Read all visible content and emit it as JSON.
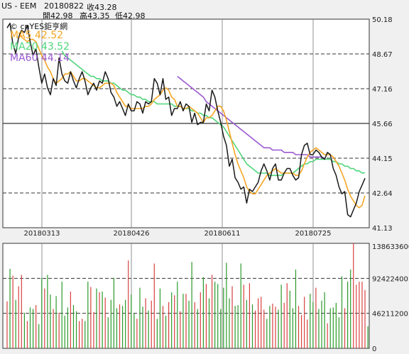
{
  "header": {
    "symbol": "US - EEM",
    "date": "20180822",
    "close_label": "收43.28",
    "open_label": "開42.98",
    "high_label": "高43.35",
    "low_label": "低42.98"
  },
  "watermark": "© cnYES鉅亨網",
  "legend": [
    {
      "text": "MA5 42.52",
      "color": "#f5a623"
    },
    {
      "text": "MA20 43.52",
      "color": "#4fd67a"
    },
    {
      "text": "MA60 44.14",
      "color": "#9b59d0"
    }
  ],
  "chart_data": [
    {
      "type": "line",
      "panel": "price",
      "ylim": [
        41.13,
        50.18
      ],
      "y_ticks": [
        "50.18",
        "48.67",
        "47.16",
        "45.66",
        "44.15",
        "42.64",
        "41.13"
      ],
      "x_tick_labels": [
        "20180313",
        "20180426",
        "20180611",
        "20180725"
      ],
      "grid": "dashed horizontal + vertical",
      "series": [
        {
          "name": "close",
          "color": "#1a1a1a",
          "values": [
            49.8,
            50.0,
            49.1,
            48.7,
            49.4,
            49.7,
            49.6,
            49.9,
            49.2,
            48.6,
            48.9,
            48.1,
            47.4,
            47.8,
            47.2,
            46.9,
            47.6,
            47.3,
            48.5,
            47.8,
            47.5,
            47.4,
            47.9,
            47.5,
            47.2,
            47.6,
            47.9,
            47.5,
            46.9,
            47.2,
            47.4,
            47.1,
            47.5,
            47.4,
            47.9,
            47.6,
            47.0,
            46.8,
            46.4,
            46.6,
            46.3,
            46.0,
            46.5,
            46.2,
            46.2,
            46.6,
            46.5,
            46.1,
            46.6,
            46.5,
            46.6,
            47.6,
            47.4,
            46.9,
            47.6,
            46.7,
            46.8,
            46.0,
            46.3,
            46.3,
            46.6,
            46.2,
            46.5,
            46.4,
            45.7,
            46.1,
            45.6,
            45.7,
            45.7,
            46.5,
            46.2,
            47.1,
            46.8,
            46.2,
            45.7,
            45.1,
            44.7,
            43.8,
            44.1,
            43.3,
            43.1,
            42.8,
            42.9,
            42.2,
            42.8,
            42.7,
            42.9,
            43.1,
            43.6,
            43.9,
            43.6,
            43.2,
            43.7,
            43.9,
            43.2,
            43.2,
            43.5,
            43.7,
            43.7,
            43.4,
            43.2,
            43.3,
            44.3,
            44.7,
            44.8,
            44.3,
            44.3,
            44.5,
            44.4,
            44.2,
            44.1,
            44.4,
            44.3,
            43.7,
            43.4,
            42.9,
            42.6,
            42.7,
            41.7,
            41.6,
            41.9,
            42.2,
            42.7,
            42.98,
            43.28
          ]
        },
        {
          "name": "MA5",
          "color": "#f5a623",
          "values": [
            null,
            null,
            null,
            null,
            49.6,
            49.4,
            49.3,
            49.2,
            49.3,
            49.3,
            49.2,
            48.9,
            48.6,
            48.4,
            48.1,
            47.9,
            47.6,
            47.4,
            47.5,
            47.6,
            47.8,
            47.8,
            47.9,
            47.7,
            47.5,
            47.5,
            47.6,
            47.6,
            47.5,
            47.4,
            47.3,
            47.2,
            47.2,
            47.3,
            47.4,
            47.4,
            47.4,
            47.3,
            47.0,
            46.8,
            46.6,
            46.4,
            46.4,
            46.3,
            46.3,
            46.3,
            46.3,
            46.3,
            46.4,
            46.4,
            46.5,
            46.7,
            46.8,
            46.9,
            47.1,
            47.2,
            47.1,
            46.8,
            46.7,
            46.4,
            46.4,
            46.3,
            46.3,
            46.4,
            46.3,
            46.2,
            46.1,
            45.9,
            45.7,
            45.9,
            45.9,
            46.0,
            46.2,
            46.4,
            46.4,
            46.2,
            45.8,
            45.3,
            44.8,
            44.3,
            43.9,
            43.6,
            43.3,
            42.9,
            42.7,
            42.6,
            42.6,
            42.8,
            43.0,
            43.2,
            43.4,
            43.5,
            43.6,
            43.7,
            43.6,
            43.5,
            43.5,
            43.5,
            43.5,
            43.5,
            43.4,
            43.4,
            43.6,
            43.9,
            44.2,
            44.4,
            44.5,
            44.6,
            44.5,
            44.4,
            44.3,
            44.3,
            44.3,
            44.2,
            44.0,
            43.8,
            43.5,
            43.2,
            42.8,
            42.5,
            42.3,
            42.1,
            42.0,
            42.1,
            42.52
          ]
        },
        {
          "name": "MA20",
          "color": "#4fd67a",
          "values": [
            null,
            null,
            null,
            null,
            null,
            null,
            null,
            null,
            null,
            null,
            null,
            null,
            null,
            null,
            null,
            null,
            null,
            null,
            null,
            48.8,
            48.6,
            48.5,
            48.4,
            48.3,
            48.2,
            48.1,
            48.0,
            47.9,
            47.8,
            47.7,
            47.7,
            47.6,
            47.6,
            47.5,
            47.5,
            47.5,
            47.4,
            47.4,
            47.3,
            47.2,
            47.1,
            47.1,
            47.0,
            46.9,
            46.9,
            46.8,
            46.8,
            46.7,
            46.7,
            46.6,
            46.6,
            46.6,
            46.5,
            46.5,
            46.5,
            46.5,
            46.5,
            46.5,
            46.4,
            46.4,
            46.4,
            46.3,
            46.3,
            46.3,
            46.2,
            46.2,
            46.1,
            46.1,
            46.0,
            46.0,
            45.9,
            45.9,
            45.8,
            45.7,
            45.6,
            45.5,
            45.3,
            45.1,
            44.9,
            44.7,
            44.5,
            44.3,
            44.1,
            43.9,
            43.8,
            43.7,
            43.6,
            43.5,
            43.5,
            43.5,
            43.5,
            43.4,
            43.4,
            43.4,
            43.4,
            43.4,
            43.5,
            43.5,
            43.5,
            43.5,
            43.6,
            43.7,
            43.8,
            43.9,
            43.9,
            44.0,
            44.0,
            44.1,
            44.1,
            44.1,
            44.1,
            44.1,
            44.1,
            44.0,
            44.0,
            43.9,
            43.9,
            43.8,
            43.8,
            43.7,
            43.7,
            43.6,
            43.6,
            43.5,
            43.52
          ]
        },
        {
          "name": "MA60",
          "color": "#9b59d0",
          "values": [
            null,
            null,
            null,
            null,
            null,
            null,
            null,
            null,
            null,
            null,
            null,
            null,
            null,
            null,
            null,
            null,
            null,
            null,
            null,
            null,
            null,
            null,
            null,
            null,
            null,
            null,
            null,
            null,
            null,
            null,
            null,
            null,
            null,
            null,
            null,
            null,
            null,
            null,
            null,
            null,
            null,
            null,
            null,
            null,
            null,
            null,
            null,
            null,
            null,
            null,
            null,
            null,
            null,
            null,
            null,
            null,
            null,
            null,
            null,
            47.7,
            47.6,
            47.5,
            47.4,
            47.3,
            47.2,
            47.1,
            47.0,
            46.9,
            46.8,
            46.6,
            46.5,
            46.4,
            46.3,
            46.2,
            46.1,
            46.0,
            45.9,
            45.8,
            45.7,
            45.6,
            45.5,
            45.4,
            45.3,
            45.2,
            45.1,
            45.0,
            44.9,
            44.8,
            44.7,
            44.6,
            44.6,
            44.6,
            44.5,
            44.5,
            44.5,
            44.5,
            44.4,
            44.4,
            44.4,
            44.4,
            44.3,
            44.3,
            44.3,
            44.3,
            44.3,
            44.2,
            44.2,
            44.2,
            44.2,
            44.2,
            44.14
          ]
        }
      ]
    },
    {
      "type": "bar",
      "panel": "volume",
      "ylim": [
        0,
        138633600
      ],
      "y_ticks": [
        "138633600",
        "92422400",
        "46211200",
        "0"
      ],
      "up_color": "#d94040",
      "down_color": "#2a9a2a",
      "values": [
        62000000,
        105000000,
        96000000,
        64000000,
        82000000,
        97000000,
        47000000,
        36000000,
        54000000,
        52000000,
        57000000,
        32000000,
        93000000,
        79000000,
        97000000,
        71000000,
        52000000,
        69000000,
        47000000,
        88000000,
        43000000,
        54000000,
        75000000,
        57000000,
        49000000,
        36000000,
        39000000,
        36000000,
        88000000,
        81000000,
        48000000,
        79000000,
        74000000,
        75000000,
        67000000,
        41000000,
        64000000,
        93000000,
        53000000,
        58000000,
        56000000,
        64000000,
        116000000,
        71000000,
        46000000,
        39000000,
        80000000,
        55000000,
        66000000,
        50000000,
        63000000,
        112000000,
        39000000,
        79000000,
        56000000,
        43000000,
        61000000,
        74000000,
        70000000,
        88000000,
        49000000,
        72000000,
        72000000,
        63000000,
        114000000,
        61000000,
        52000000,
        74000000,
        94000000,
        85000000,
        66000000,
        97000000,
        88000000,
        85000000,
        52000000,
        80000000,
        113000000,
        66000000,
        82000000,
        56000000,
        57000000,
        112000000,
        84000000,
        64000000,
        86000000,
        58000000,
        50000000,
        66000000,
        68000000,
        51000000,
        39000000,
        56000000,
        59000000,
        55000000,
        51000000,
        84000000,
        60000000,
        86000000,
        76000000,
        53000000,
        104000000,
        56000000,
        44000000,
        68000000,
        38000000,
        72000000,
        61000000,
        80000000,
        52000000,
        63000000,
        74000000,
        33000000,
        53000000,
        54000000,
        60000000,
        41000000,
        95000000,
        53000000,
        88000000,
        104000000,
        142000000,
        84000000,
        88000000,
        88000000,
        77000000,
        29000000
      ],
      "up": [
        1,
        0,
        1,
        0,
        1,
        1,
        0,
        1,
        0,
        0,
        1,
        0,
        0,
        1,
        0,
        0,
        1,
        0,
        1,
        0,
        0,
        0,
        1,
        0,
        0,
        1,
        1,
        0,
        0,
        1,
        1,
        0,
        1,
        0,
        1,
        0,
        0,
        0,
        0,
        1,
        0,
        0,
        1,
        0,
        0,
        1,
        0,
        0,
        1,
        0,
        1,
        1,
        0,
        0,
        1,
        0,
        1,
        0,
        1,
        0,
        1,
        0,
        1,
        0,
        0,
        1,
        0,
        1,
        0,
        1,
        0,
        1,
        0,
        0,
        0,
        0,
        0,
        0,
        1,
        0,
        0,
        0,
        1,
        0,
        1,
        0,
        1,
        1,
        1,
        1,
        0,
        0,
        1,
        1,
        0,
        0,
        1,
        1,
        0,
        0,
        0,
        1,
        1,
        1,
        1,
        0,
        0,
        1,
        0,
        0,
        0,
        1,
        0,
        0,
        0,
        0,
        0,
        1,
        0,
        0,
        1,
        1,
        1,
        1,
        1
      ]
    }
  ]
}
